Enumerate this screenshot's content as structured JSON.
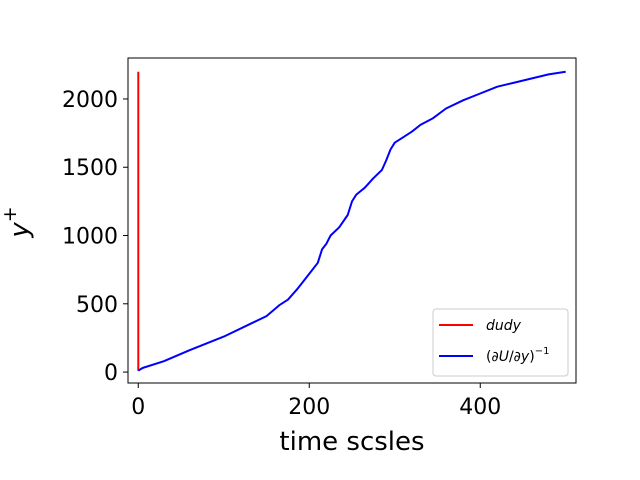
{
  "chart_data": {
    "type": "line",
    "title": "",
    "xlabel": "time scsles",
    "ylabel_base": "y",
    "ylabel_sup": "+",
    "xlim": [
      -12,
      512
    ],
    "ylim": [
      -80,
      2300
    ],
    "xticks": [
      0,
      200,
      400
    ],
    "yticks": [
      0,
      500,
      1000,
      1500,
      2000
    ],
    "grid": false,
    "legend_position": "lower right",
    "series": [
      {
        "name": "dudy",
        "color": "#ff0000",
        "x": [
          0,
          0
        ],
        "y": [
          2200,
          10
        ]
      },
      {
        "name_parts": [
          "(∂",
          "U",
          "/∂",
          "y",
          ")",
          "−1"
        ],
        "color": "#0000ff",
        "x": [
          0,
          5,
          30,
          60,
          100,
          130,
          150,
          165,
          175,
          185,
          190,
          200,
          210,
          215,
          220,
          225,
          235,
          245,
          250,
          255,
          265,
          275,
          285,
          290,
          295,
          300,
          310,
          320,
          330,
          345,
          360,
          380,
          400,
          420,
          440,
          460,
          480,
          500
        ],
        "y": [
          10,
          30,
          80,
          160,
          260,
          350,
          410,
          490,
          530,
          600,
          640,
          720,
          800,
          900,
          940,
          1000,
          1060,
          1150,
          1250,
          1300,
          1350,
          1420,
          1480,
          1550,
          1630,
          1680,
          1720,
          1760,
          1810,
          1860,
          1930,
          1990,
          2040,
          2090,
          2120,
          2150,
          2180,
          2200
        ]
      }
    ]
  }
}
